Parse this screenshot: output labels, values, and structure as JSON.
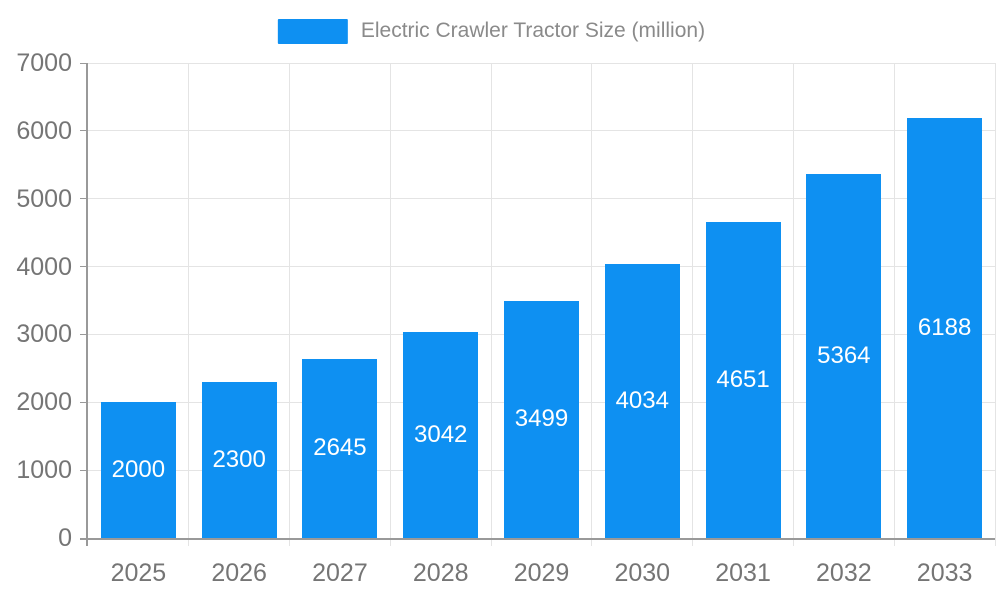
{
  "chart_data": {
    "type": "bar",
    "title": "",
    "series_name": "Electric Crawler Tractor Size (million)",
    "legend": [
      "Electric Crawler Tractor Size (million)"
    ],
    "legend_position": "top-center",
    "categories": [
      "2025",
      "2026",
      "2027",
      "2028",
      "2029",
      "2030",
      "2031",
      "2032",
      "2033"
    ],
    "values": [
      2000,
      2300,
      2645,
      3042,
      3499,
      4034,
      4651,
      5364,
      6188
    ],
    "xlabel": "",
    "ylabel": "",
    "ylim": [
      0,
      7000
    ],
    "ytick_step": 1000,
    "yticks": [
      "0",
      "1000",
      "2000",
      "3000",
      "4000",
      "5000",
      "6000",
      "7000"
    ],
    "grid": true,
    "bar_color": "#0e90f2",
    "colors": {
      "gridline": "#e4e4e4",
      "axis_line": "#999999",
      "axis_text": "#757575",
      "legend_text": "#8a8a8a",
      "value_label": "#ffffff",
      "background": "#ffffff"
    }
  }
}
